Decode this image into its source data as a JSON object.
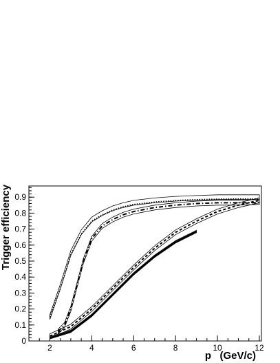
{
  "chart_data": {
    "type": "line",
    "title": "",
    "xlabel": "p   (GeV/c)",
    "ylabel": "Trigger efficiency",
    "xlim": [
      1,
      12.1
    ],
    "ylim": [
      0,
      0.97
    ],
    "xticks": [
      2,
      4,
      6,
      8,
      10,
      12
    ],
    "yticks": [
      0,
      0.1,
      0.2,
      0.3,
      0.4,
      0.5,
      0.6,
      0.7,
      0.8,
      0.9
    ],
    "grid": false,
    "legend": "none",
    "series": [
      {
        "style": "band",
        "x": [
          2,
          2.5,
          3,
          3.5,
          4,
          4.5,
          5,
          5.5,
          6,
          7,
          8,
          9,
          10,
          11,
          12
        ],
        "y": [
          0.15,
          0.34,
          0.55,
          0.68,
          0.76,
          0.8,
          0.83,
          0.85,
          0.865,
          0.88,
          0.89,
          0.895,
          0.9,
          0.9,
          0.9
        ],
        "band": 0.03
      },
      {
        "style": "dotted",
        "x": [
          2,
          2.5,
          3,
          3.5,
          4,
          4.5,
          5,
          5.5,
          6,
          7,
          8,
          9,
          10,
          11,
          12
        ],
        "y": [
          0.15,
          0.33,
          0.54,
          0.67,
          0.75,
          0.79,
          0.82,
          0.84,
          0.855,
          0.87,
          0.88,
          0.885,
          0.888,
          0.89,
          0.89
        ]
      },
      {
        "style": "band",
        "x": [
          2.4,
          2.7,
          3,
          3.3,
          3.6,
          4,
          4.5,
          5,
          5.5,
          6,
          7,
          8,
          9,
          10,
          11,
          12
        ],
        "y": [
          0.06,
          0.1,
          0.2,
          0.35,
          0.5,
          0.64,
          0.72,
          0.76,
          0.79,
          0.81,
          0.835,
          0.85,
          0.86,
          0.865,
          0.865,
          0.87
        ],
        "band": 0.03
      },
      {
        "style": "dashdot",
        "x": [
          2.4,
          2.7,
          3,
          3.3,
          3.6,
          4,
          4.5,
          5,
          5.5,
          6,
          7,
          8,
          9,
          10,
          11,
          12
        ],
        "y": [
          0.06,
          0.1,
          0.2,
          0.35,
          0.5,
          0.64,
          0.72,
          0.76,
          0.79,
          0.81,
          0.835,
          0.85,
          0.86,
          0.865,
          0.865,
          0.865
        ]
      },
      {
        "style": "band",
        "x": [
          2,
          3,
          4,
          5,
          6,
          7,
          8,
          9,
          10,
          11,
          12
        ],
        "y": [
          0.03,
          0.09,
          0.2,
          0.33,
          0.46,
          0.58,
          0.68,
          0.75,
          0.81,
          0.85,
          0.88
        ],
        "band": 0.03
      },
      {
        "style": "dashed",
        "x": [
          2,
          3,
          4,
          5,
          6,
          7,
          8,
          9,
          10,
          11,
          12
        ],
        "y": [
          0.03,
          0.09,
          0.2,
          0.33,
          0.46,
          0.58,
          0.68,
          0.75,
          0.81,
          0.85,
          0.88
        ]
      },
      {
        "style": "band",
        "x": [
          2,
          3,
          4,
          5,
          6,
          7,
          8,
          9
        ],
        "y": [
          0.02,
          0.06,
          0.16,
          0.29,
          0.42,
          0.53,
          0.62,
          0.685
        ],
        "band": 0.015
      },
      {
        "style": "solid-thick",
        "x": [
          2,
          3,
          4,
          5,
          6,
          7,
          8,
          9
        ],
        "y": [
          0.02,
          0.06,
          0.16,
          0.29,
          0.42,
          0.53,
          0.62,
          0.685
        ]
      }
    ]
  }
}
